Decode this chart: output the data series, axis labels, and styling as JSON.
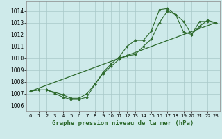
{
  "background_color": "#ceeaea",
  "grid_color": "#a8c8c8",
  "line_color": "#2d6a2d",
  "marker_color": "#2d6a2d",
  "title": "Graphe pression niveau de la mer (hPa)",
  "title_fontsize": 6.5,
  "ylim": [
    1005.5,
    1014.8
  ],
  "xlim": [
    -0.5,
    23.5
  ],
  "yticks": [
    1006,
    1007,
    1008,
    1009,
    1010,
    1011,
    1012,
    1013,
    1014
  ],
  "xticks": [
    0,
    1,
    2,
    3,
    4,
    5,
    6,
    7,
    8,
    9,
    10,
    11,
    12,
    13,
    14,
    15,
    16,
    17,
    18,
    19,
    20,
    21,
    22,
    23
  ],
  "series1_x": [
    0,
    1,
    2,
    3,
    4,
    5,
    6,
    7,
    8,
    9,
    10,
    11,
    12,
    13,
    14,
    15,
    16,
    17,
    18,
    19,
    20,
    21,
    22,
    23
  ],
  "series1_y": [
    1007.2,
    1007.3,
    1007.3,
    1007.0,
    1006.7,
    1006.5,
    1006.5,
    1006.7,
    1007.8,
    1008.7,
    1009.3,
    1009.9,
    1010.2,
    1010.3,
    1011.0,
    1011.6,
    1013.0,
    1014.0,
    1013.7,
    1013.1,
    1012.0,
    1013.1,
    1013.1,
    1013.0
  ],
  "series2_x": [
    0,
    1,
    2,
    3,
    4,
    5,
    6,
    7,
    8,
    9,
    10,
    11,
    12,
    13,
    14,
    15,
    16,
    17,
    18,
    19,
    20,
    21,
    22,
    23
  ],
  "series2_y": [
    1007.2,
    1007.3,
    1007.3,
    1007.1,
    1006.9,
    1006.6,
    1006.6,
    1007.0,
    1007.8,
    1008.8,
    1009.5,
    1010.1,
    1011.0,
    1011.5,
    1011.5,
    1012.3,
    1014.1,
    1014.2,
    1013.7,
    1012.2,
    1012.0,
    1012.7,
    1013.2,
    1013.0
  ],
  "series3_x": [
    0,
    23
  ],
  "series3_y": [
    1007.2,
    1013.0
  ]
}
